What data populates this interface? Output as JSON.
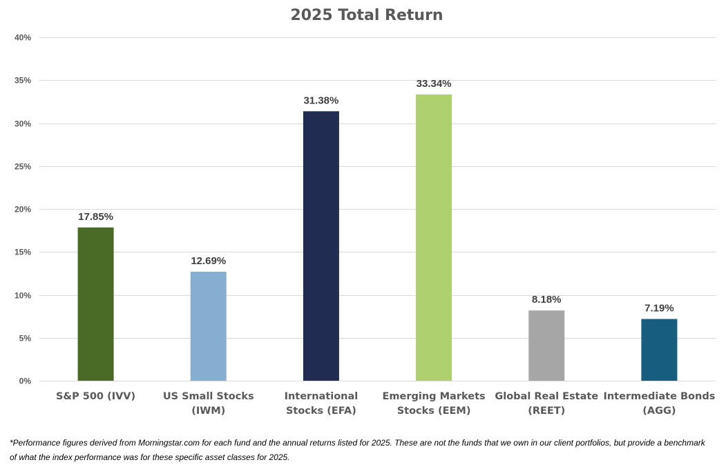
{
  "chart_data": {
    "type": "bar",
    "title": "2025 Total Return",
    "categories": [
      [
        "S&P 500 (IVV)"
      ],
      [
        "US Small Stocks",
        "(IWM)"
      ],
      [
        "International",
        "Stocks (EFA)"
      ],
      [
        "Emerging Markets",
        "Stocks (EEM)"
      ],
      [
        "Global Real Estate",
        "(REET)"
      ],
      [
        "Intermediate Bonds",
        "(AGG)"
      ]
    ],
    "values": [
      17.85,
      12.69,
      31.38,
      33.34,
      8.18,
      7.19
    ],
    "data_labels": [
      "17.85%",
      "12.69%",
      "31.38%",
      "33.34%",
      "8.18%",
      "7.19%"
    ],
    "colors": [
      "#4a6b26",
      "#85aed0",
      "#212c52",
      "#afd06e",
      "#a6a6a6",
      "#175d7f"
    ],
    "ylim": [
      0,
      40
    ],
    "yticks": [
      0,
      5,
      10,
      15,
      20,
      25,
      30,
      35,
      40
    ],
    "ytick_labels": [
      "0%",
      "5%",
      "10%",
      "15%",
      "20%",
      "25%",
      "30%",
      "35%",
      "40%"
    ],
    "grid": true,
    "legend": "none"
  },
  "footnote": "*Performance figures derived from Morningstar.com for each fund and the annual returns listed for 2025. These are not the funds that we own in our client portfolios, but provide a benchmark of what the index performance was for these specific asset classes for 2025."
}
